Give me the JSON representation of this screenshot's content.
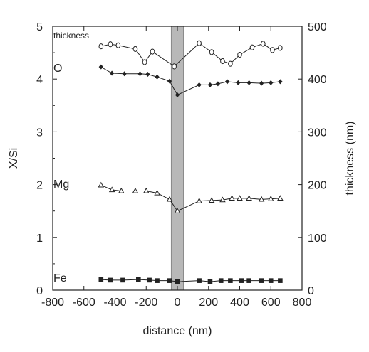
{
  "chart_data": {
    "type": "line",
    "xlabel": "distance (nm)",
    "ylabel_left": "X/Si",
    "ylabel_right": "thickness (nm)",
    "xlim": [
      -800,
      800
    ],
    "xticks": [
      -800,
      -600,
      -400,
      -200,
      0,
      200,
      400,
      600,
      800
    ],
    "ylim_left": [
      0,
      5
    ],
    "yticks_left": [
      0,
      1,
      2,
      3,
      4,
      5
    ],
    "ylim_right": [
      0,
      500
    ],
    "yticks_right": [
      0,
      100,
      200,
      300,
      400,
      500
    ],
    "shaded_band": {
      "x_from": -40,
      "x_to": 40,
      "color": "#b8b8b8"
    },
    "grid": false,
    "series": [
      {
        "name": "thickness",
        "axis": "right",
        "marker": "open-circle",
        "x": [
          -490,
          -430,
          -380,
          -270,
          -210,
          -160,
          -20,
          140,
          220,
          290,
          340,
          400,
          480,
          550,
          610,
          660
        ],
        "y": [
          462,
          466,
          464,
          457,
          432,
          452,
          424,
          468,
          451,
          434,
          429,
          446,
          460,
          467,
          455,
          459
        ]
      },
      {
        "name": "O",
        "axis": "left",
        "marker": "filled-diamond",
        "x": [
          -490,
          -420,
          -340,
          -240,
          -190,
          -130,
          -50,
          0,
          140,
          210,
          260,
          320,
          390,
          460,
          540,
          600,
          660
        ],
        "y": [
          4.23,
          4.11,
          4.1,
          4.1,
          4.09,
          4.04,
          3.96,
          3.7,
          3.89,
          3.89,
          3.91,
          3.95,
          3.93,
          3.93,
          3.92,
          3.93,
          3.95
        ]
      },
      {
        "name": "Mg",
        "axis": "left",
        "marker": "open-triangle",
        "x": [
          -490,
          -420,
          -360,
          -270,
          -200,
          -130,
          -50,
          0,
          140,
          220,
          290,
          350,
          400,
          460,
          540,
          600,
          660
        ],
        "y": [
          1.99,
          1.9,
          1.88,
          1.88,
          1.88,
          1.84,
          1.72,
          1.5,
          1.69,
          1.7,
          1.71,
          1.74,
          1.74,
          1.74,
          1.72,
          1.73,
          1.74
        ]
      },
      {
        "name": "Fe",
        "axis": "left",
        "marker": "filled-square",
        "x": [
          -490,
          -430,
          -350,
          -250,
          -180,
          -130,
          -50,
          0,
          140,
          210,
          280,
          340,
          410,
          460,
          540,
          600,
          660
        ],
        "y": [
          0.2,
          0.19,
          0.19,
          0.2,
          0.19,
          0.18,
          0.18,
          0.16,
          0.18,
          0.16,
          0.18,
          0.18,
          0.18,
          0.18,
          0.18,
          0.18,
          0.18
        ]
      }
    ],
    "series_labels": [
      {
        "text": "thickness"
      },
      {
        "text": "O"
      },
      {
        "text": "Mg"
      },
      {
        "text": "Fe"
      }
    ]
  }
}
